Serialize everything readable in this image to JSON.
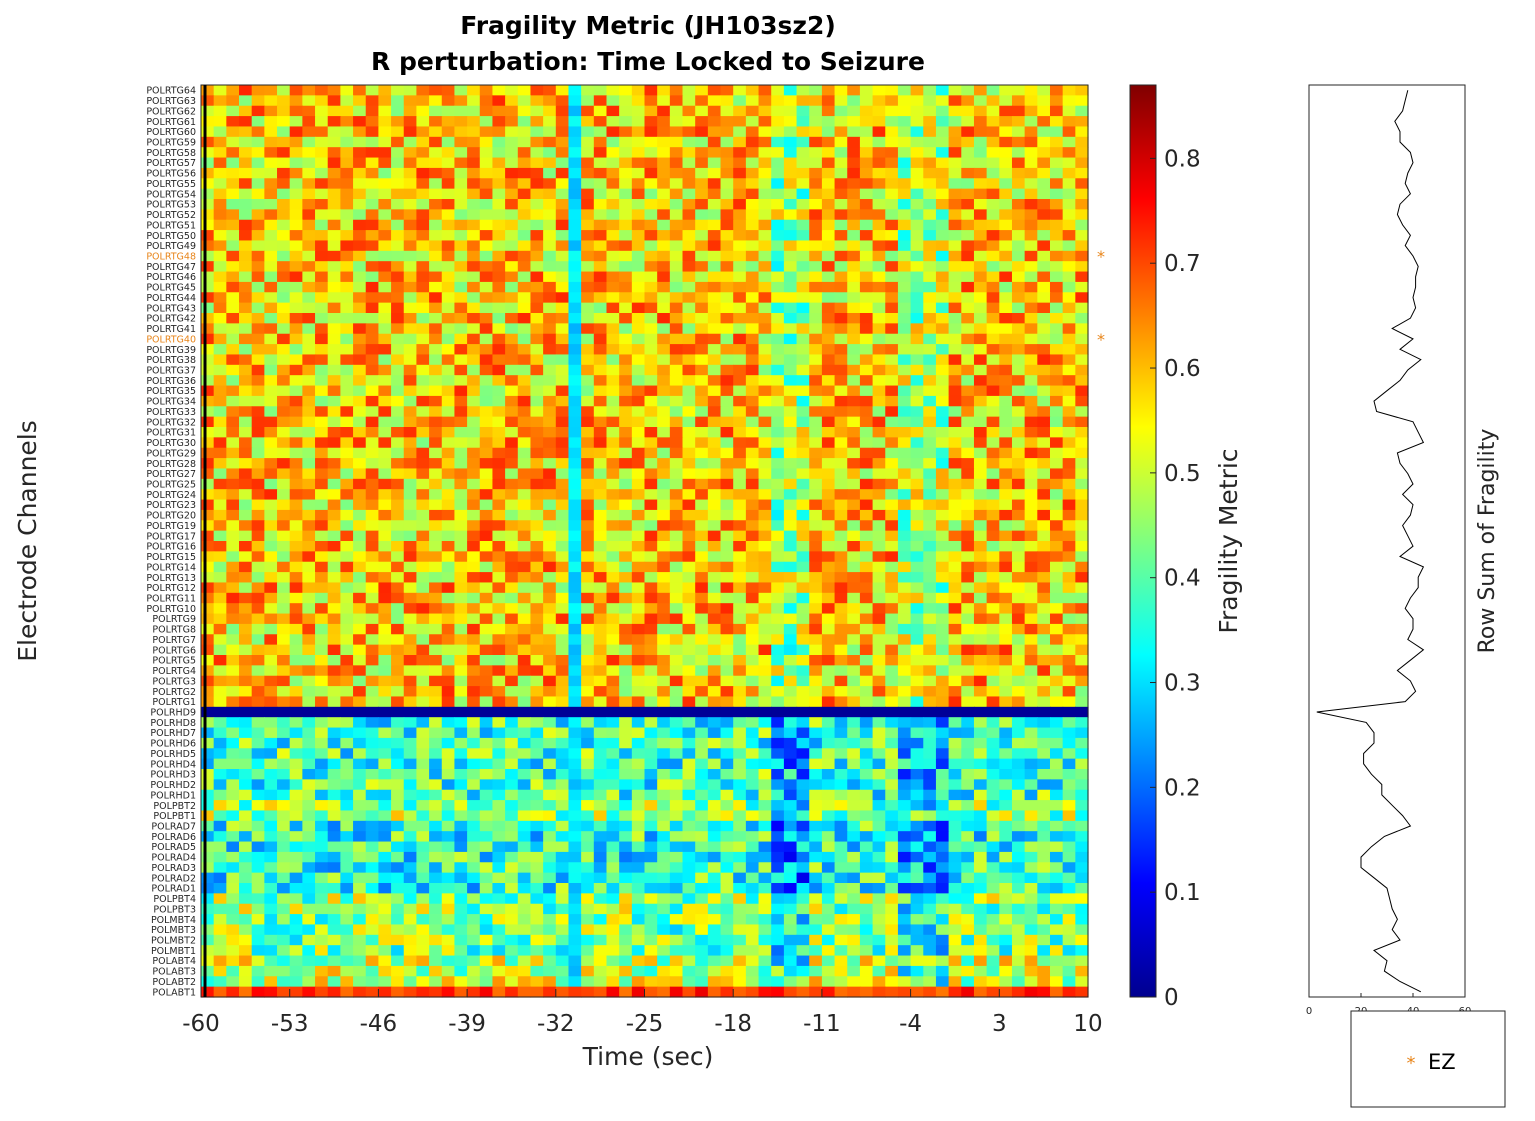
{
  "chart_data": [
    {
      "type": "heatmap",
      "title": "Fragility Metric (JH103sz2)",
      "subtitle": "R perturbation:  Time Locked to Seizure",
      "xlabel": "Time (sec)",
      "ylabel": "Electrode Channels",
      "xlim": [
        -60,
        10
      ],
      "x_ticks": [
        "-60",
        "-53",
        "-46",
        "-39",
        "-32",
        "-25",
        "-18",
        "-11",
        "-4",
        "3",
        "10"
      ],
      "x_tick_values": [
        -60,
        -53,
        -46,
        -39,
        -32,
        -25,
        -18,
        -11,
        -4,
        3,
        10
      ],
      "time_step_sec": 1,
      "channels": [
        "POLRTG64",
        "POLRTG63",
        "POLRTG62",
        "POLRTG61",
        "POLRTG60",
        "POLRTG59",
        "POLRTG58",
        "POLRTG57",
        "POLRTG56",
        "POLRTG55",
        "POLRTG54",
        "POLRTG53",
        "POLRTG52",
        "POLRTG51",
        "POLRTG50",
        "POLRTG49",
        "POLRTG48",
        "POLRTG47",
        "POLRTG46",
        "POLRTG45",
        "POLRTG44",
        "POLRTG43",
        "POLRTG42",
        "POLRTG41",
        "POLRTG40",
        "POLRTG39",
        "POLRTG38",
        "POLRTG37",
        "POLRTG36",
        "POLRTG35",
        "POLRTG34",
        "POLRTG33",
        "POLRTG32",
        "POLRTG31",
        "POLRTG30",
        "POLRTG29",
        "POLRTG28",
        "POLRTG27",
        "POLRTG25",
        "POLRTG24",
        "POLRTG23",
        "POLRTG20",
        "POLRTG19",
        "POLRTG17",
        "POLRTG16",
        "POLRTG15",
        "POLRTG14",
        "POLRTG13",
        "POLRTG12",
        "POLRTG11",
        "POLRTG10",
        "POLRTG9",
        "POLRTG8",
        "POLRTG7",
        "POLRTG6",
        "POLRTG5",
        "POLRTG4",
        "POLRTG3",
        "POLRTG2",
        "POLRTG1",
        "POLRHD9",
        "POLRHD8",
        "POLRHD7",
        "POLRHD6",
        "POLRHD5",
        "POLRHD4",
        "POLRHD3",
        "POLRHD2",
        "POLRHD1",
        "POLPBT2",
        "POLPBT1",
        "POLRAD7",
        "POLRAD6",
        "POLRAD5",
        "POLRAD4",
        "POLRAD3",
        "POLRAD2",
        "POLRAD1",
        "POLPBT4",
        "POLPBT3",
        "POLMBT4",
        "POLMBT3",
        "POLMBT2",
        "POLMBT1",
        "POLABT4",
        "POLABT3",
        "POLABT2",
        "POLABT1"
      ],
      "ez_channels": [
        "POLRTG48",
        "POLRTG40"
      ],
      "colorbar": {
        "label": "Fragility Metric",
        "range": [
          0,
          0.87
        ],
        "ticks": [
          "0",
          "0.1",
          "0.2",
          "0.3",
          "0.4",
          "0.5",
          "0.6",
          "0.7",
          "0.8"
        ],
        "tick_values": [
          0,
          0.1,
          0.2,
          0.3,
          0.4,
          0.5,
          0.6,
          0.7,
          0.8
        ],
        "colormap": "jet"
      },
      "group_mean_fragility": {
        "POLRTG": 0.58,
        "POLRHD": 0.38,
        "POLPBT": 0.45,
        "POLRAD": 0.36,
        "POLMBT": 0.43,
        "POLABT": 0.49
      },
      "notable_values": {
        "POLRHD9_all_times": 0.02,
        "POLABT1_all_times": 0.72,
        "time_-31_column": 0.3,
        "seizure_onset_marker_time": -60
      }
    },
    {
      "type": "line",
      "xlabel": "Row Sum of Fragility",
      "xlim": [
        0,
        60
      ],
      "x_ticks": [
        "0",
        "20",
        "40",
        "60"
      ],
      "x_tick_values": [
        0,
        20,
        40,
        60
      ],
      "row_sums": [
        38,
        37,
        36,
        33,
        35,
        35,
        39,
        40,
        38,
        37,
        39,
        35,
        34,
        36,
        39,
        37,
        40,
        42,
        41,
        41,
        40,
        41,
        39,
        32,
        40,
        35,
        43,
        38,
        35,
        30,
        25,
        26,
        40,
        42,
        44,
        34,
        35,
        38,
        40,
        36,
        40,
        39,
        36,
        38,
        40,
        35,
        44,
        42,
        42,
        39,
        37,
        40,
        40,
        38,
        44,
        39,
        34,
        39,
        41,
        37,
        3,
        22,
        25,
        25,
        21,
        21,
        24,
        28,
        28,
        32,
        36,
        39,
        29,
        24,
        20,
        20,
        25,
        30,
        31,
        32,
        34,
        32,
        35,
        25,
        30,
        29,
        35,
        43
      ],
      "legend": {
        "marker": "*",
        "label": "EZ",
        "color": "#e8851a"
      }
    }
  ]
}
